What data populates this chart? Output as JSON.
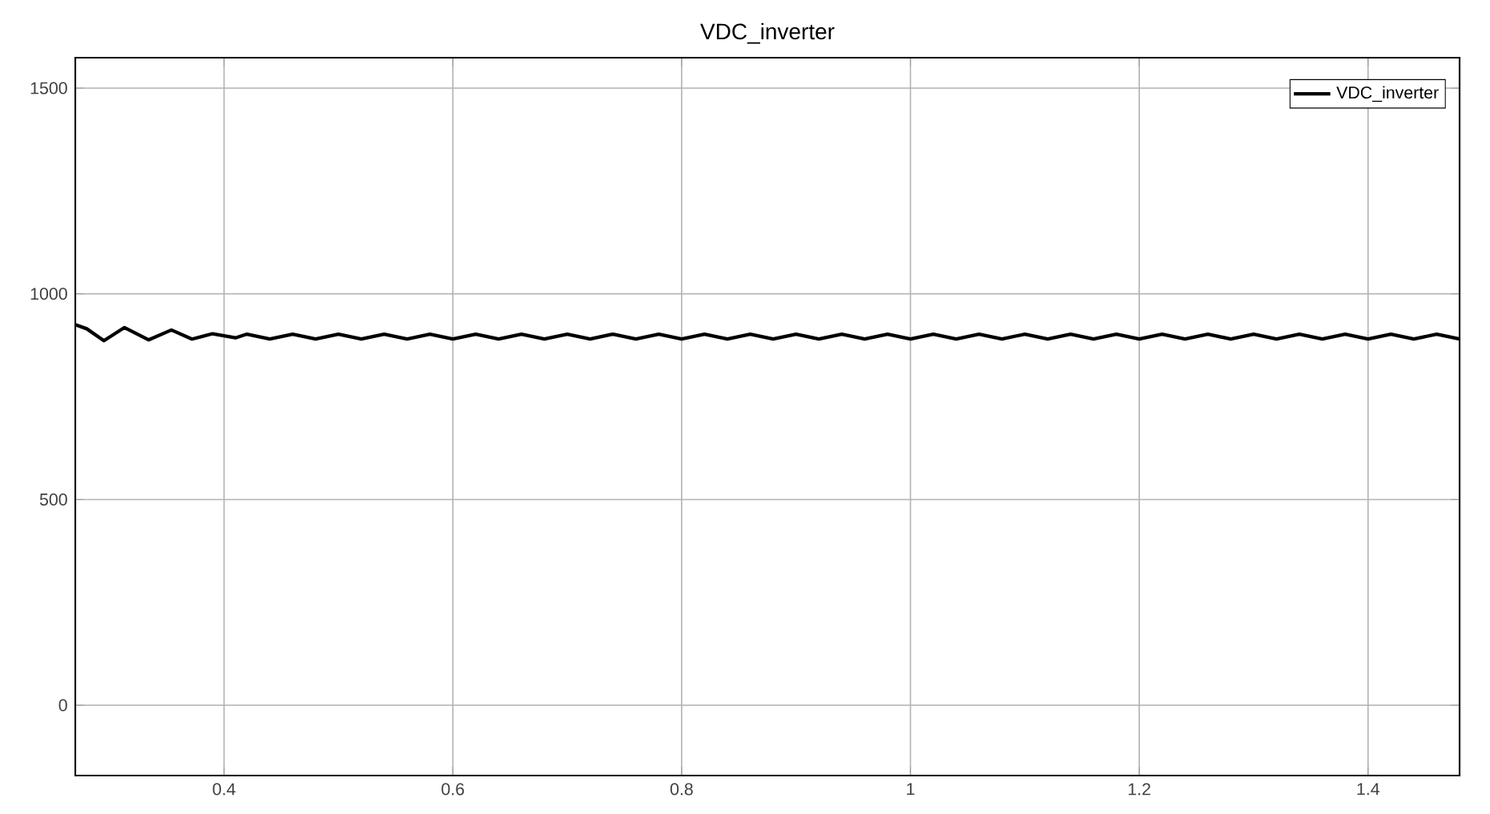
{
  "chart_data": {
    "type": "line",
    "title": "VDC_inverter",
    "xlim": [
      0.27,
      1.48
    ],
    "ylim": [
      -171,
      1574
    ],
    "xticks": [
      0.4,
      0.6,
      0.8,
      1,
      1.2,
      1.4
    ],
    "yticks": [
      0,
      500,
      1000,
      1500
    ],
    "grid": true,
    "legend": "top right",
    "series": [
      {
        "name": "VDC_inverter",
        "color": "#000000",
        "x": [
          0.27,
          0.28,
          0.295,
          0.313,
          0.334,
          0.354,
          0.372,
          0.39,
          0.41,
          0.42,
          0.44,
          0.46,
          0.48,
          0.5,
          0.52,
          0.54,
          0.56,
          0.58,
          0.6,
          0.62,
          0.64,
          0.66,
          0.68,
          0.7,
          0.72,
          0.74,
          0.76,
          0.78,
          0.8,
          0.82,
          0.84,
          0.86,
          0.88,
          0.9,
          0.92,
          0.94,
          0.96,
          0.98,
          1.0,
          1.02,
          1.04,
          1.06,
          1.08,
          1.1,
          1.12,
          1.14,
          1.16,
          1.18,
          1.2,
          1.22,
          1.24,
          1.26,
          1.28,
          1.3,
          1.32,
          1.34,
          1.36,
          1.38,
          1.4,
          1.42,
          1.44,
          1.46,
          1.48
        ],
        "values": [
          925,
          915,
          886,
          918,
          888,
          912,
          890,
          903,
          893,
          902,
          890,
          902,
          890,
          902,
          890,
          902,
          890,
          902,
          890,
          902,
          890,
          902,
          890,
          902,
          890,
          902,
          890,
          902,
          890,
          902,
          890,
          902,
          890,
          902,
          890,
          902,
          890,
          902,
          890,
          902,
          890,
          902,
          890,
          902,
          890,
          902,
          890,
          902,
          890,
          902,
          890,
          902,
          890,
          902,
          890,
          902,
          890,
          902,
          890,
          902,
          890,
          902,
          890
        ]
      }
    ]
  }
}
